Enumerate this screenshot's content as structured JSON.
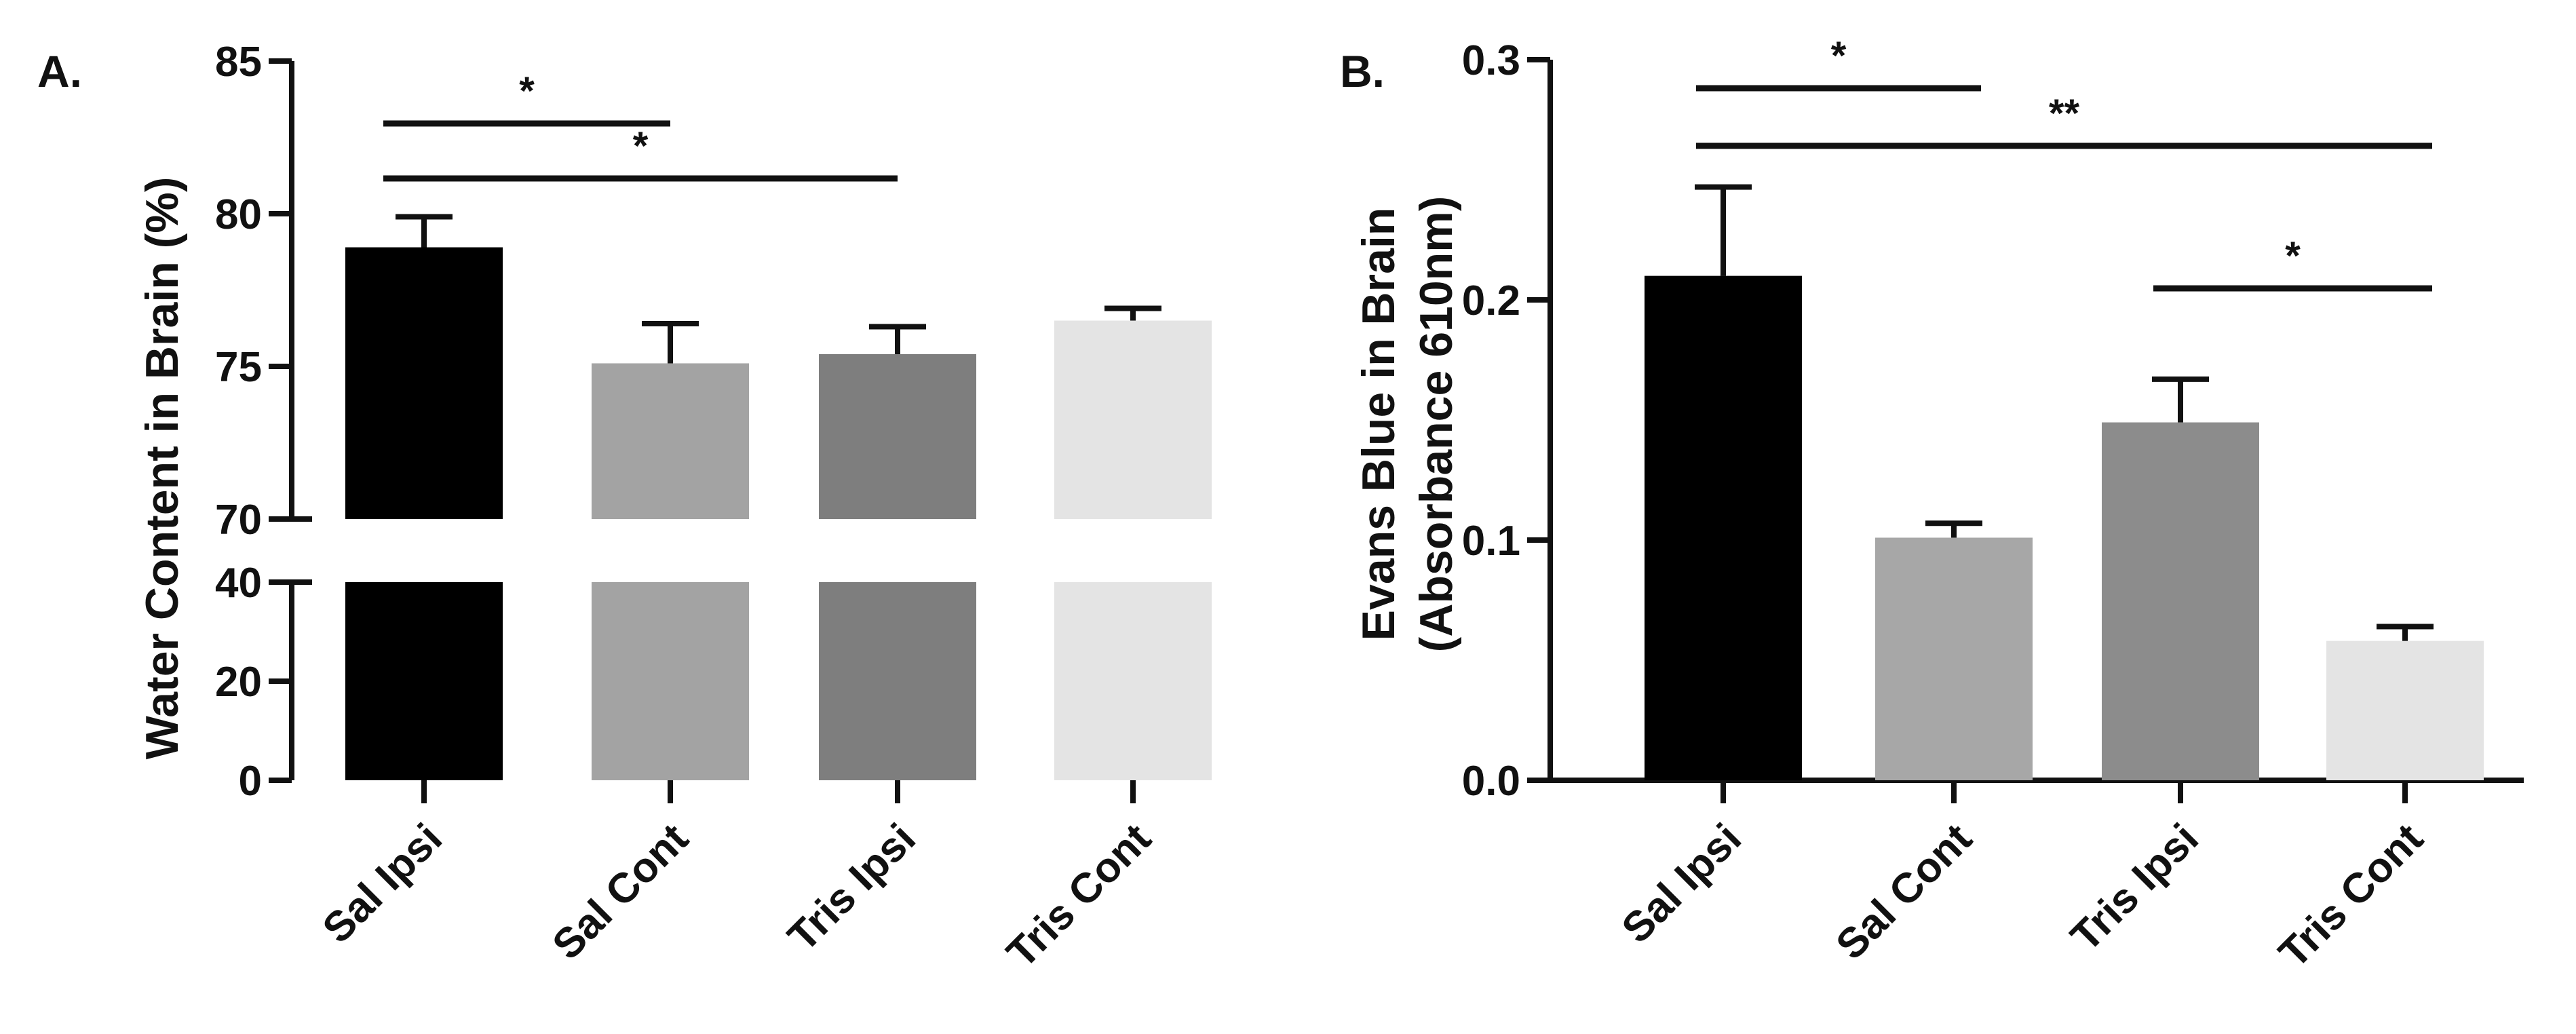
{
  "chart_data": [
    {
      "panel_label": "A.",
      "type": "bar",
      "categories": [
        "Sal Ipsi",
        "Sal Cont",
        "Tris Ipsi",
        "Tris Cont"
      ],
      "values": [
        78.9,
        75.1,
        75.4,
        76.5
      ],
      "error": [
        1.0,
        1.3,
        0.9,
        0.4
      ],
      "colors": [
        "#000000",
        "#a3a3a3",
        "#7e7e7e",
        "#e4e4e4"
      ],
      "xlabel": "",
      "ylabel": "Water Content in Brain (%)",
      "y_axis_broken": true,
      "ylim_lower": [
        0,
        40
      ],
      "ylim_upper": [
        70,
        85
      ],
      "yticks_lower": [
        "0",
        "20",
        "40"
      ],
      "yticks_upper": [
        "70",
        "75",
        "80",
        "85"
      ],
      "significance": [
        {
          "from": "Sal Ipsi",
          "to": "Sal Cont",
          "label": "*"
        },
        {
          "from": "Sal Ipsi",
          "to": "Tris Ipsi",
          "label": "*"
        }
      ]
    },
    {
      "panel_label": "B.",
      "type": "bar",
      "categories": [
        "Sal Ipsi",
        "Sal Cont",
        "Tris Ipsi",
        "Tris Cont"
      ],
      "values": [
        0.21,
        0.101,
        0.149,
        0.058
      ],
      "error": [
        0.037,
        0.006,
        0.018,
        0.006
      ],
      "colors": [
        "#000000",
        "#a7a7a7",
        "#8c8c8c",
        "#e4e4e4"
      ],
      "xlabel": "",
      "ylabel": [
        "Evans Blue in Brain",
        "(Absorbance 610nm)"
      ],
      "ylim": [
        0,
        0.3
      ],
      "yticks": [
        "0.0",
        "0.1",
        "0.2",
        "0.3"
      ],
      "significance": [
        {
          "from": "Sal Ipsi",
          "to": "Sal Cont",
          "label": "*"
        },
        {
          "from": "Sal Ipsi",
          "to": "Tris Cont",
          "label": "**"
        },
        {
          "from": "Tris Ipsi",
          "to": "Tris Cont",
          "label": "*"
        }
      ]
    }
  ]
}
